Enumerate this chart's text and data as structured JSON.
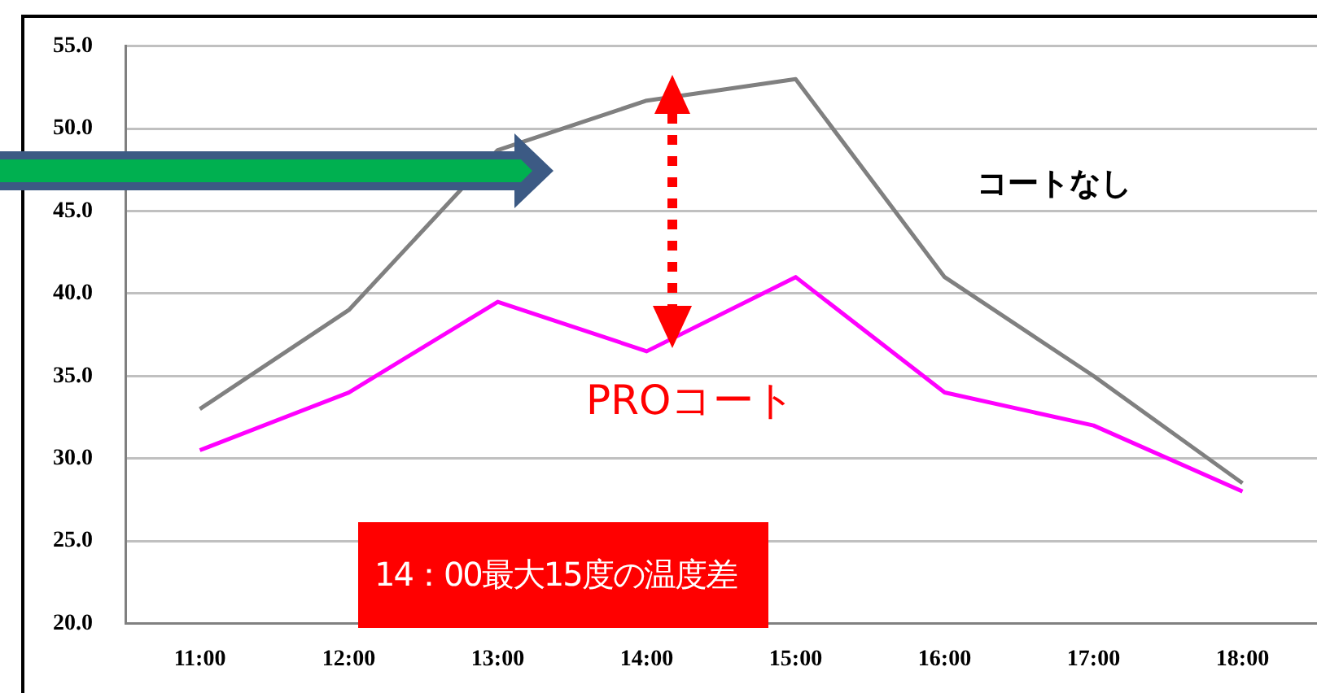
{
  "chart_data": {
    "type": "line",
    "categories": [
      "11:00",
      "12:00",
      "13:00",
      "14:00",
      "15:00",
      "16:00",
      "17:00",
      "18:00"
    ],
    "series": [
      {
        "name": "コートなし",
        "color": "#808080",
        "values": [
          33,
          39,
          48.7,
          51.7,
          53,
          41,
          35,
          28.5
        ]
      },
      {
        "name": "PROコート",
        "color": "#ff00ff",
        "values": [
          30.5,
          34,
          39.5,
          36.5,
          41,
          34,
          32,
          28
        ]
      }
    ],
    "ylim": [
      20,
      55
    ],
    "yticks": [
      {
        "value": 20,
        "label": "20.0"
      },
      {
        "value": 25,
        "label": "25.0"
      },
      {
        "value": 30,
        "label": "30.0"
      },
      {
        "value": 35,
        "label": "35.0"
      },
      {
        "value": 40,
        "label": "40.0"
      },
      {
        "value": 45,
        "label": "45.0"
      },
      {
        "value": 50,
        "label": "50.0"
      },
      {
        "value": 55,
        "label": "55.0"
      }
    ],
    "grid": "y",
    "legend": false,
    "marker": "none",
    "line_style": "solid",
    "annotations": [
      "14：00最大15度の温度差"
    ]
  }
}
